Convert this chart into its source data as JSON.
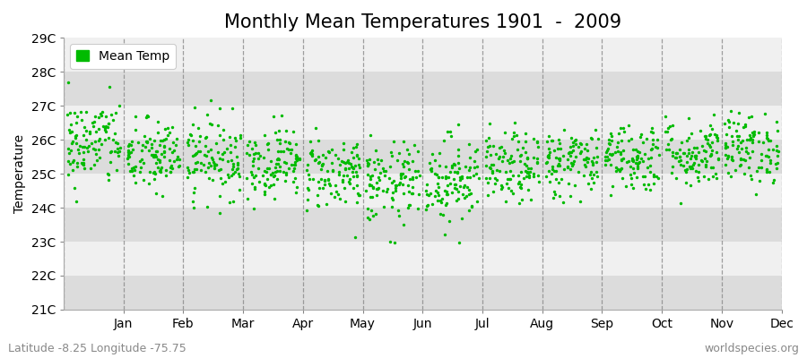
{
  "title": "Monthly Mean Temperatures 1901  -  2009",
  "ylabel": "Temperature",
  "xlabel_labels": [
    "Jan",
    "Feb",
    "Mar",
    "Apr",
    "May",
    "Jun",
    "Jul",
    "Aug",
    "Sep",
    "Oct",
    "Nov",
    "Dec"
  ],
  "ytick_labels": [
    "21C",
    "22C",
    "23C",
    "24C",
    "25C",
    "26C",
    "27C",
    "28C",
    "29C"
  ],
  "ytick_values": [
    21,
    22,
    23,
    24,
    25,
    26,
    27,
    28,
    29
  ],
  "ylim": [
    21,
    29
  ],
  "dot_color": "#00bb00",
  "bg_color_light": "#f0f0f0",
  "bg_color_dark": "#dcdcdc",
  "legend_label": "Mean Temp",
  "legend_marker_color": "#00bb00",
  "footer_left": "Latitude -8.25 Longitude -75.75",
  "footer_right": "worldspecies.org",
  "title_fontsize": 15,
  "axis_fontsize": 10,
  "footer_fontsize": 9,
  "n_years": 109,
  "seed": 42,
  "month_means": [
    25.9,
    25.5,
    25.5,
    25.35,
    25.05,
    24.7,
    24.85,
    25.15,
    25.35,
    25.5,
    25.6,
    25.75
  ],
  "month_stds": [
    0.65,
    0.55,
    0.6,
    0.52,
    0.55,
    0.6,
    0.65,
    0.52,
    0.52,
    0.52,
    0.52,
    0.52
  ]
}
